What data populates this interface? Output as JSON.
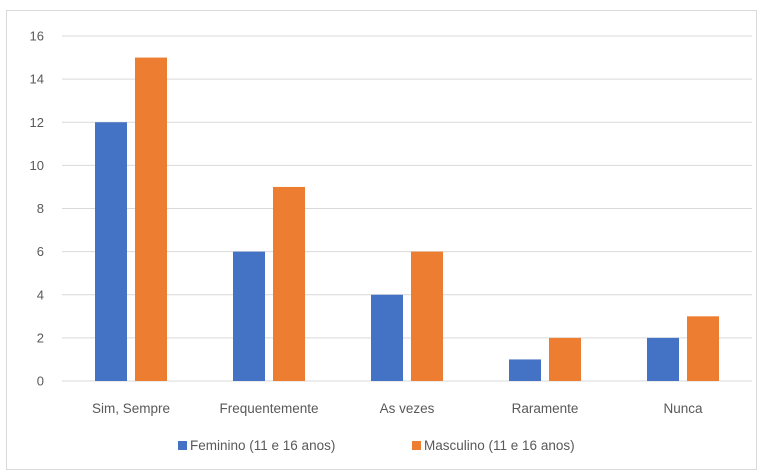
{
  "chart_data": {
    "type": "bar",
    "title": "",
    "xlabel": "",
    "ylabel": "",
    "categories": [
      "Sim, Sempre",
      "Frequentemente",
      "As vezes",
      "Raramente",
      "Nunca"
    ],
    "series": [
      {
        "name": "Feminino (11 e 16 anos)",
        "values": [
          12,
          6,
          4,
          1,
          2
        ],
        "color": "#4472C4"
      },
      {
        "name": "Masculino (11 e 16 anos)",
        "values": [
          15,
          9,
          6,
          2,
          3
        ],
        "color": "#ED7D31"
      }
    ],
    "ylim": [
      0,
      16
    ],
    "yticks": [
      0,
      2,
      4,
      6,
      8,
      10,
      12,
      14,
      16
    ],
    "grid": true,
    "legend_position": "bottom"
  }
}
